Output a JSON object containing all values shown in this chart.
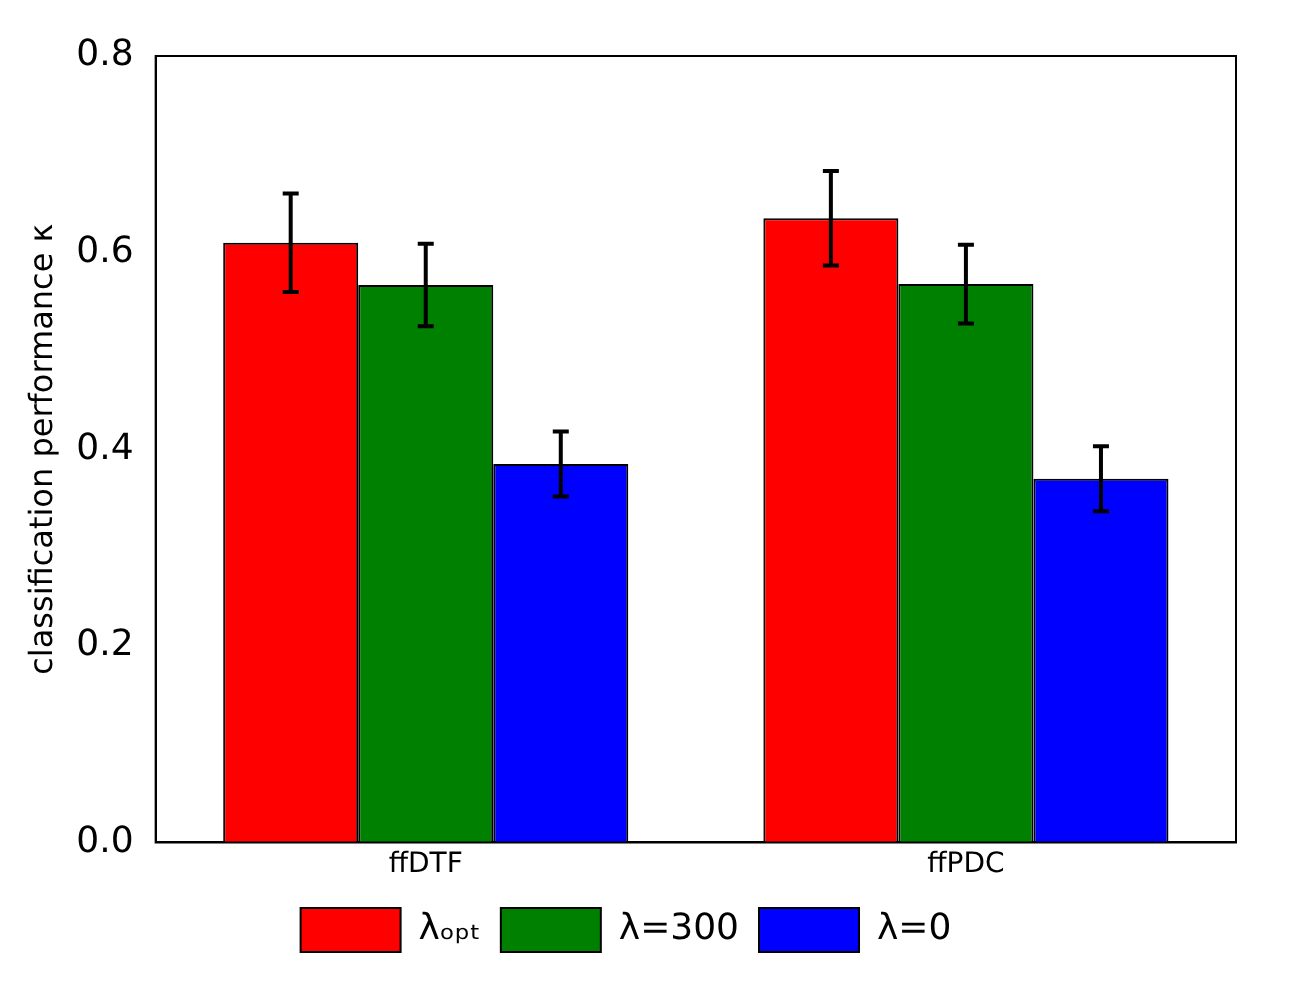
{
  "chart_data": {
    "type": "bar",
    "ylabel": "classification performance κ",
    "categories": [
      "ffDTF",
      "ffPDC"
    ],
    "series": [
      {
        "name": "λₒₚₜ",
        "color": "#ff0000",
        "values": [
          0.61,
          0.635
        ],
        "errors": [
          0.05,
          0.048
        ]
      },
      {
        "name": "λ=300",
        "color": "#008000",
        "values": [
          0.567,
          0.568
        ],
        "errors": [
          0.042,
          0.04
        ]
      },
      {
        "name": "λ=0",
        "color": "#0000ff",
        "values": [
          0.385,
          0.37
        ],
        "errors": [
          0.033,
          0.033
        ]
      }
    ],
    "ylim": [
      0,
      0.8
    ],
    "yticks": [
      {
        "value": 0,
        "label": "0.0"
      },
      0.2,
      0.4,
      0.6,
      0.8
    ],
    "grid": false,
    "legend": "bottom"
  }
}
